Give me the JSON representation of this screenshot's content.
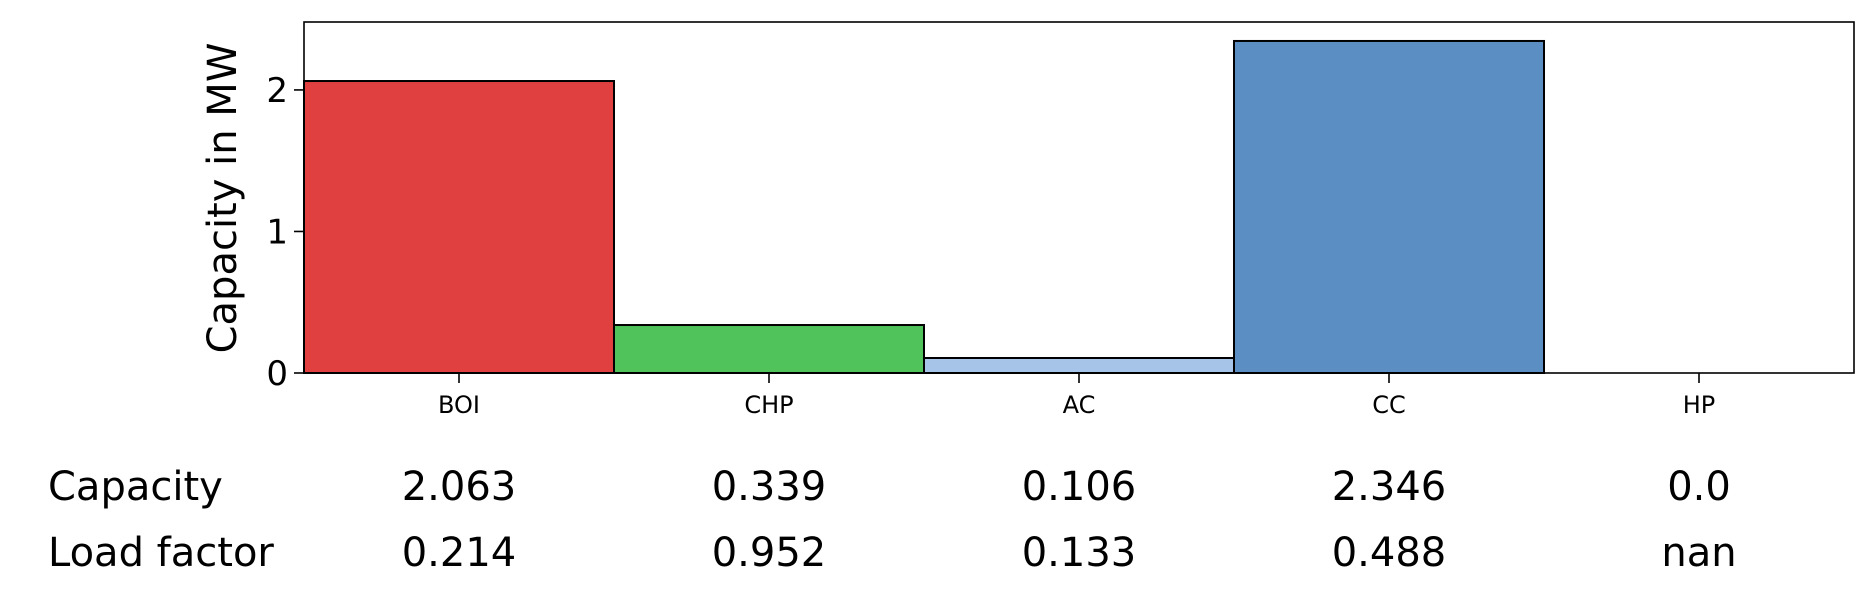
{
  "chart_data": {
    "type": "bar",
    "title": "",
    "xlabel": "",
    "ylabel": "Capacity in MW",
    "categories": [
      "BOI",
      "CHP",
      "AC",
      "CC",
      "HP"
    ],
    "values": [
      2.063,
      0.339,
      0.106,
      2.346,
      0.0
    ],
    "colors": [
      "#e04040",
      "#50c35a",
      "#a6c4e8",
      "#5b8fc3",
      "#5b8fc3"
    ],
    "ylim": [
      0,
      2.48
    ],
    "yticks": [
      "0",
      "1",
      "2"
    ],
    "grid": false,
    "table": {
      "rows": [
        {
          "label": "Capacity",
          "values": [
            "2.063",
            "0.339",
            "0.106",
            "2.346",
            "0.0"
          ]
        },
        {
          "label": "Load factor",
          "values": [
            "0.214",
            "0.952",
            "0.133",
            "0.488",
            "nan"
          ]
        }
      ]
    }
  }
}
